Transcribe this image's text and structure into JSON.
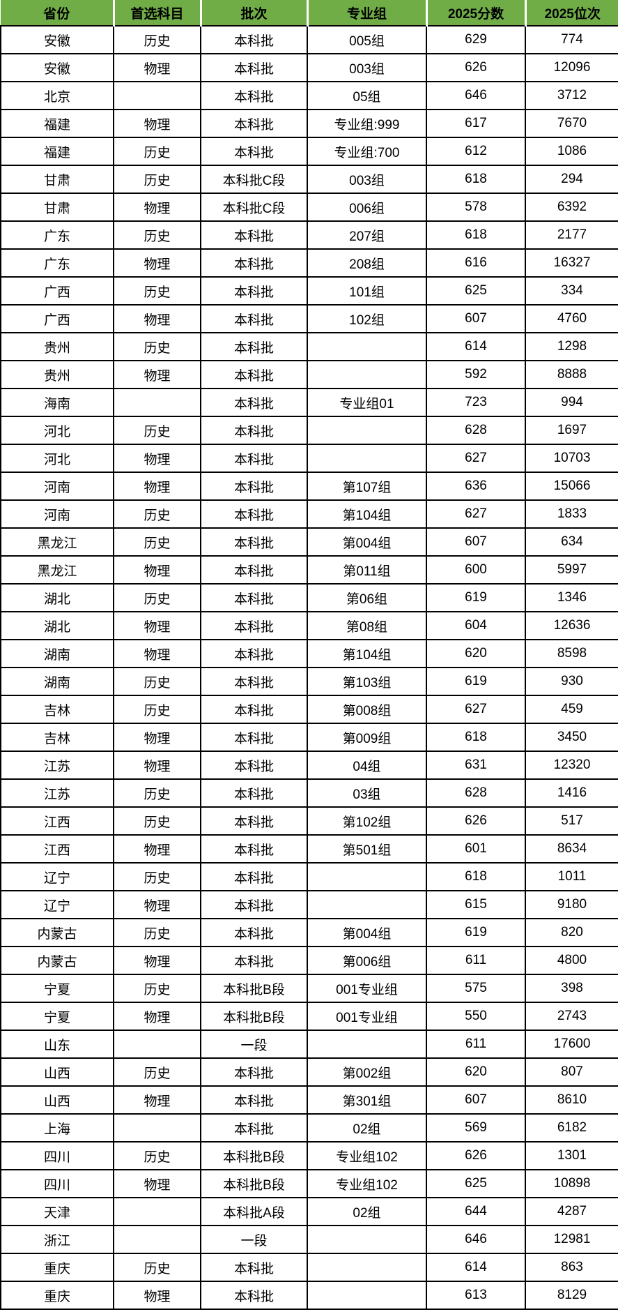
{
  "colors": {
    "header_bg": "#70ad47",
    "header_text": "#000000",
    "cell_bg": "#ffffff",
    "grid_border": "#000000",
    "header_separator": "#ffffff"
  },
  "chart_data": {
    "type": "table",
    "columns": [
      {
        "key": "province",
        "label": "省份"
      },
      {
        "key": "subject",
        "label": "首选科目"
      },
      {
        "key": "batch",
        "label": "批次"
      },
      {
        "key": "group",
        "label": "专业组"
      },
      {
        "key": "score",
        "label": "2025分数"
      },
      {
        "key": "rank",
        "label": "2025位次"
      }
    ],
    "rows": [
      [
        "安徽",
        "历史",
        "本科批",
        "005组",
        "629",
        "774"
      ],
      [
        "安徽",
        "物理",
        "本科批",
        "003组",
        "626",
        "12096"
      ],
      [
        "北京",
        "",
        "本科批",
        "05组",
        "646",
        "3712"
      ],
      [
        "福建",
        "物理",
        "本科批",
        "专业组:999",
        "617",
        "7670"
      ],
      [
        "福建",
        "历史",
        "本科批",
        "专业组:700",
        "612",
        "1086"
      ],
      [
        "甘肃",
        "历史",
        "本科批C段",
        "003组",
        "618",
        "294"
      ],
      [
        "甘肃",
        "物理",
        "本科批C段",
        "006组",
        "578",
        "6392"
      ],
      [
        "广东",
        "历史",
        "本科批",
        "207组",
        "618",
        "2177"
      ],
      [
        "广东",
        "物理",
        "本科批",
        "208组",
        "616",
        "16327"
      ],
      [
        "广西",
        "历史",
        "本科批",
        "101组",
        "625",
        "334"
      ],
      [
        "广西",
        "物理",
        "本科批",
        "102组",
        "607",
        "4760"
      ],
      [
        "贵州",
        "历史",
        "本科批",
        "",
        "614",
        "1298"
      ],
      [
        "贵州",
        "物理",
        "本科批",
        "",
        "592",
        "8888"
      ],
      [
        "海南",
        "",
        "本科批",
        "专业组01",
        "723",
        "994"
      ],
      [
        "河北",
        "历史",
        "本科批",
        "",
        "628",
        "1697"
      ],
      [
        "河北",
        "物理",
        "本科批",
        "",
        "627",
        "10703"
      ],
      [
        "河南",
        "物理",
        "本科批",
        "第107组",
        "636",
        "15066"
      ],
      [
        "河南",
        "历史",
        "本科批",
        "第104组",
        "627",
        "1833"
      ],
      [
        "黑龙江",
        "历史",
        "本科批",
        "第004组",
        "607",
        "634"
      ],
      [
        "黑龙江",
        "物理",
        "本科批",
        "第011组",
        "600",
        "5997"
      ],
      [
        "湖北",
        "历史",
        "本科批",
        "第06组",
        "619",
        "1346"
      ],
      [
        "湖北",
        "物理",
        "本科批",
        "第08组",
        "604",
        "12636"
      ],
      [
        "湖南",
        "物理",
        "本科批",
        "第104组",
        "620",
        "8598"
      ],
      [
        "湖南",
        "历史",
        "本科批",
        "第103组",
        "619",
        "930"
      ],
      [
        "吉林",
        "历史",
        "本科批",
        "第008组",
        "627",
        "459"
      ],
      [
        "吉林",
        "物理",
        "本科批",
        "第009组",
        "618",
        "3450"
      ],
      [
        "江苏",
        "物理",
        "本科批",
        "04组",
        "631",
        "12320"
      ],
      [
        "江苏",
        "历史",
        "本科批",
        "03组",
        "628",
        "1416"
      ],
      [
        "江西",
        "历史",
        "本科批",
        "第102组",
        "626",
        "517"
      ],
      [
        "江西",
        "物理",
        "本科批",
        "第501组",
        "601",
        "8634"
      ],
      [
        "辽宁",
        "历史",
        "本科批",
        "",
        "618",
        "1011"
      ],
      [
        "辽宁",
        "物理",
        "本科批",
        "",
        "615",
        "9180"
      ],
      [
        "内蒙古",
        "历史",
        "本科批",
        "第004组",
        "619",
        "820"
      ],
      [
        "内蒙古",
        "物理",
        "本科批",
        "第006组",
        "611",
        "4800"
      ],
      [
        "宁夏",
        "历史",
        "本科批B段",
        "001专业组",
        "575",
        "398"
      ],
      [
        "宁夏",
        "物理",
        "本科批B段",
        "001专业组",
        "550",
        "2743"
      ],
      [
        "山东",
        "",
        "一段",
        "",
        "611",
        "17600"
      ],
      [
        "山西",
        "历史",
        "本科批",
        "第002组",
        "620",
        "807"
      ],
      [
        "山西",
        "物理",
        "本科批",
        "第301组",
        "607",
        "8610"
      ],
      [
        "上海",
        "",
        "本科批",
        "02组",
        "569",
        "6182"
      ],
      [
        "四川",
        "历史",
        "本科批B段",
        "专业组102",
        "626",
        "1301"
      ],
      [
        "四川",
        "物理",
        "本科批B段",
        "专业组102",
        "625",
        "10898"
      ],
      [
        "天津",
        "",
        "本科批A段",
        "02组",
        "644",
        "4287"
      ],
      [
        "浙江",
        "",
        "一段",
        "",
        "646",
        "12981"
      ],
      [
        "重庆",
        "历史",
        "本科批",
        "",
        "614",
        "863"
      ],
      [
        "重庆",
        "物理",
        "本科批",
        "",
        "613",
        "8129"
      ]
    ]
  }
}
